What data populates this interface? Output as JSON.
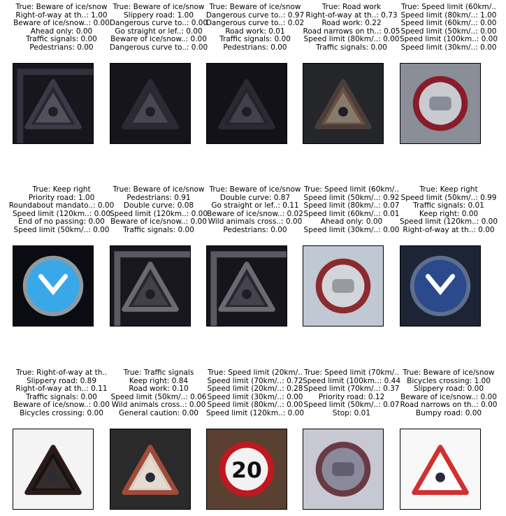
{
  "panels": [
    {
      "lines": [
        "True: Beware of ice/snow",
        "Right-of-way at th..: 1.00",
        "Beware of ice/snow..: 0.00",
        "Ahead only: 0.00",
        "Traffic signals: 0.00",
        "Pedestrians: 0.00"
      ],
      "thumbnail_icon": "dark-triangle-sign-icon"
    },
    {
      "lines": [
        "True: Beware of ice/snow",
        "Slippery road: 1.00",
        "Dangerous curve to..: 0.00",
        "Go straight or lef..: 0.00",
        "Beware of ice/snow..: 0.00",
        "Dangerous curve to..: 0.00"
      ],
      "thumbnail_icon": "dark-triangle-sign-icon"
    },
    {
      "lines": [
        "True: Beware of ice/snow",
        "Dangerous curve to..: 0.97",
        "Dangerous curve to..: 0.02",
        "Road work: 0.01",
        "Traffic signals: 0.00",
        "Pedestrians: 0.00"
      ],
      "thumbnail_icon": "dark-triangle-sign-icon"
    },
    {
      "lines": [
        "True: Road work",
        "Right-of-way at th..: 0.73",
        "Road work: 0.22",
        "Road narrows on th..: 0.05",
        "Speed limit (80km/..: 0.00",
        "Traffic signals: 0.00"
      ],
      "thumbnail_icon": "triangle-sign-icon"
    },
    {
      "lines": [
        "True: Speed limit (60km/..",
        "Speed limit (80km/..: 1.00",
        "Speed limit (60km/..: 0.00",
        "Speed limit (50km/..: 0.00",
        "Speed limit (100km..: 0.00",
        "Speed limit (30km/..: 0.00"
      ],
      "thumbnail_icon": "speed-limit-sign-icon"
    },
    {
      "lines": [
        "True: Keep right",
        "Priority road: 1.00",
        "Roundabout mandato..: 0.00",
        "Speed limit (120km..: 0.00",
        "End of no passing: 0.00",
        "Speed limit (50km/..: 0.00"
      ],
      "thumbnail_icon": "blue-circle-sign-icon"
    },
    {
      "lines": [
        "True: Beware of ice/snow",
        "Pedestrians: 0.91",
        "Double curve: 0.08",
        "Speed limit (120km..: 0.00",
        "Beware of ice/snow..: 0.00",
        "Traffic signals: 0.00"
      ],
      "thumbnail_icon": "dark-triangle-sign-icon"
    },
    {
      "lines": [
        "True: Beware of ice/snow",
        "Double curve: 0.87",
        "Go straight or lef..: 0.11",
        "Beware of ice/snow..: 0.02",
        "Wild animals cross..: 0.00",
        "Pedestrians: 0.00"
      ],
      "thumbnail_icon": "dark-triangle-sign-icon"
    },
    {
      "lines": [
        "True: Speed limit (60km/..",
        "Speed limit (50km/..: 0.92",
        "Speed limit (80km/..: 0.07",
        "Speed limit (60km/..: 0.01",
        "Ahead only: 0.00",
        "Speed limit (30km/..: 0.00"
      ],
      "thumbnail_icon": "speed-limit-sign-icon"
    },
    {
      "lines": [
        "True: Keep right",
        "Speed limit (50km/..: 0.99",
        "Traffic signals: 0.01",
        "Keep right: 0.00",
        "Speed limit (120km..: 0.00",
        "Right-of-way at th..: 0.00"
      ],
      "thumbnail_icon": "blue-circle-sign-icon"
    },
    {
      "lines": [
        "True: Right-of-way at th..",
        "Slippery road: 0.89",
        "Right-of-way at th..: 0.11",
        "Traffic signals: 0.00",
        "Beware of ice/snow..: 0.00",
        "Bicycles crossing: 0.00"
      ],
      "thumbnail_icon": "triangle-sign-icon"
    },
    {
      "lines": [
        "True: Traffic signals",
        "Keep right: 0.84",
        "Road work: 0.10",
        "Speed limit (50km/..: 0.06",
        "Wild animals cross..: 0.00",
        "General caution: 0.00"
      ],
      "thumbnail_icon": "triangle-sign-icon"
    },
    {
      "lines": [
        "True: Speed limit (20km/..",
        "Speed limit (70km/..: 0.72",
        "Speed limit (20km/..: 0.28",
        "Speed limit (30km/..: 0.00",
        "Speed limit (80km/..: 0.00",
        "Speed limit (120km..: 0.00"
      ],
      "thumbnail_icon": "speed-limit-sign-icon",
      "sign_text": "20"
    },
    {
      "lines": [
        "True: Speed limit (70km/..",
        "Speed limit (100km..: 0.44",
        "Speed limit (70km/..: 0.37",
        "Priority road: 0.12",
        "Speed limit (50km/..: 0.07",
        "Stop: 0.01"
      ],
      "thumbnail_icon": "speed-limit-sign-icon"
    },
    {
      "lines": [
        "True: Beware of ice/snow",
        "Bicycles crossing: 1.00",
        "Slippery road: 0.00",
        "Beware of ice/snow..: 0.00",
        "Road narrows on th..: 0.00",
        "Bumpy road: 0.00"
      ],
      "thumbnail_icon": "triangle-sign-icon"
    }
  ]
}
